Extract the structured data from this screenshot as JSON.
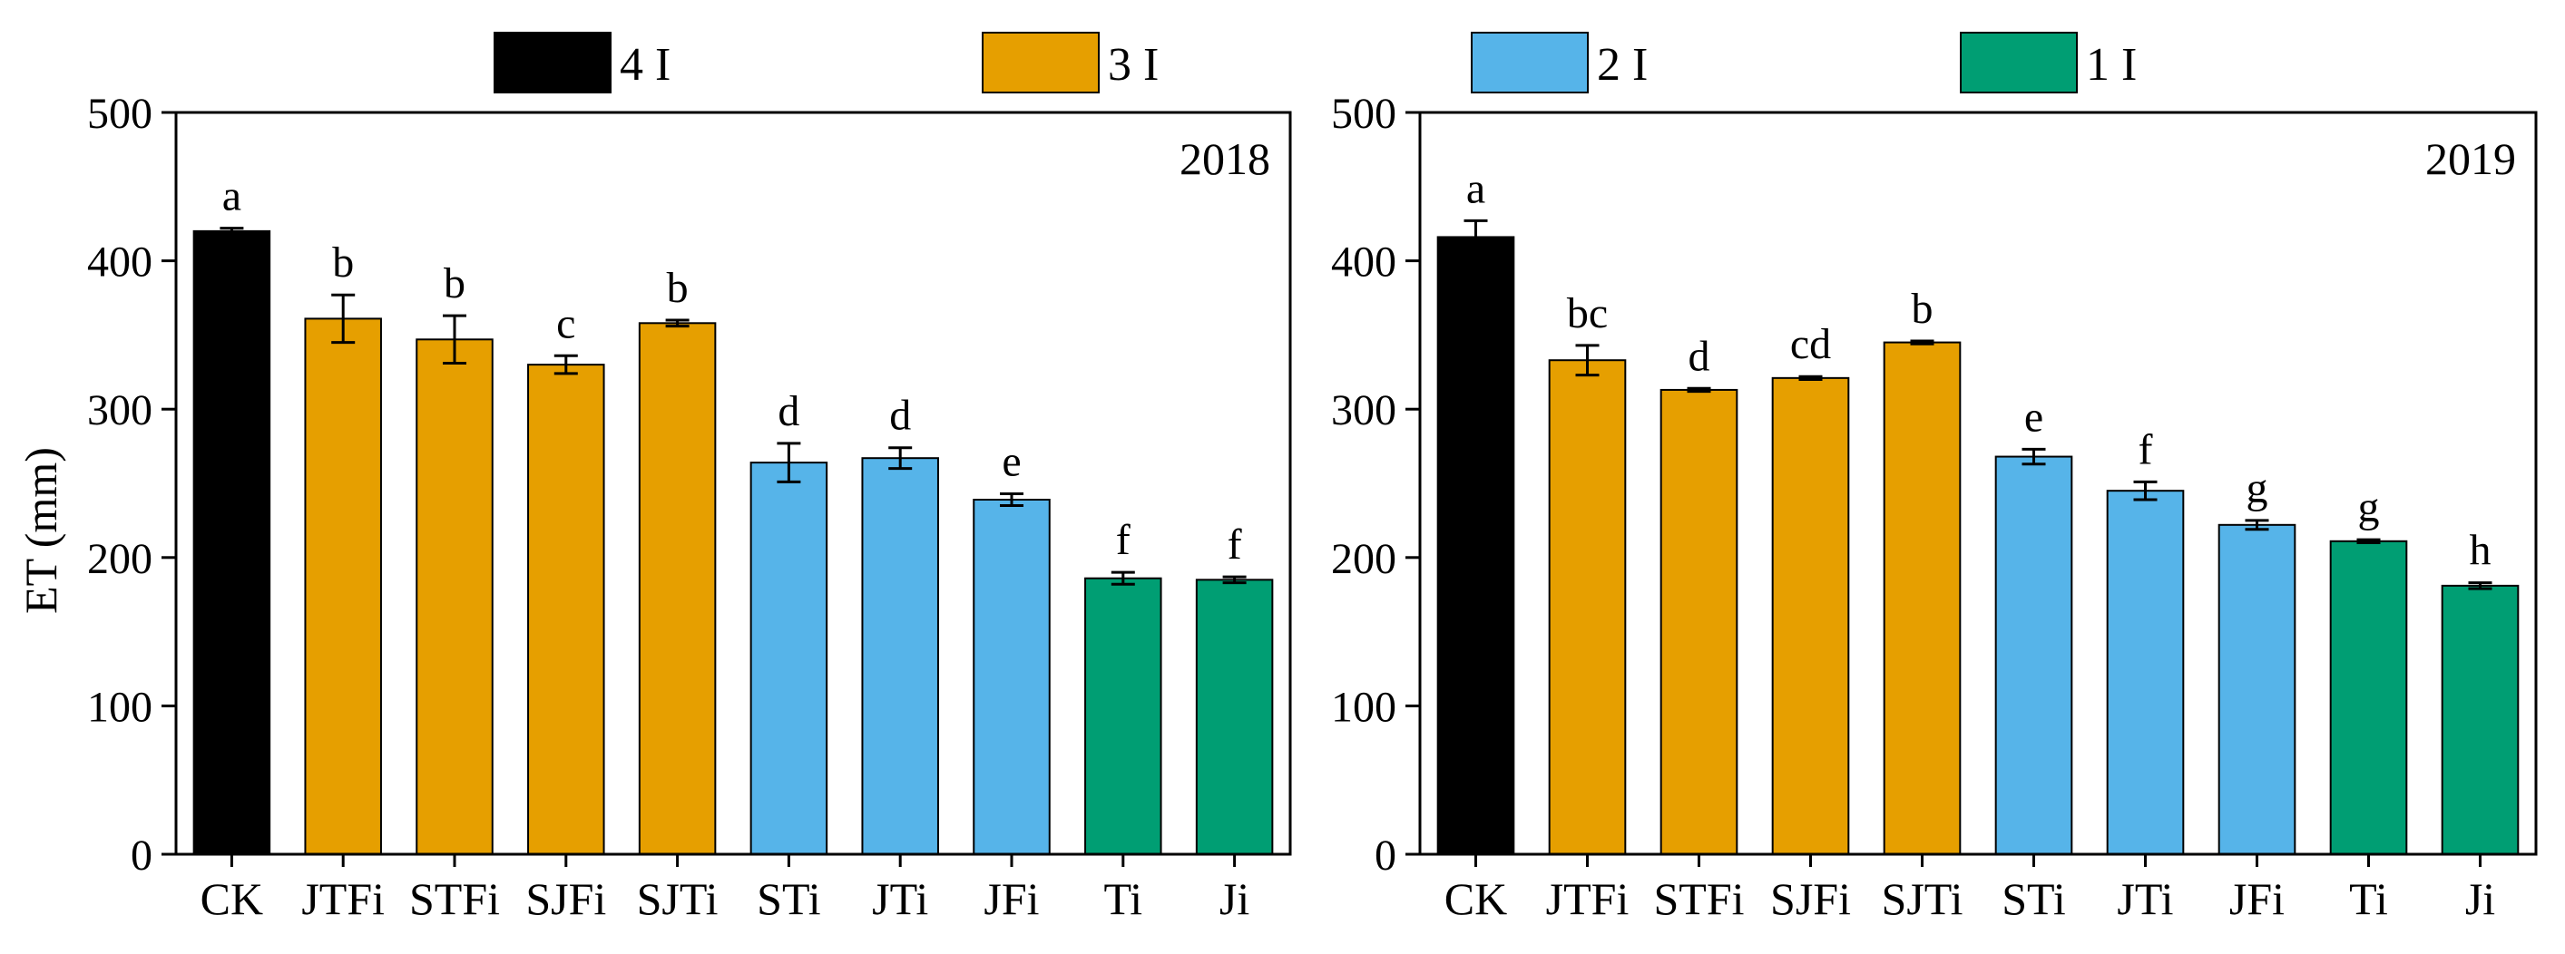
{
  "legend": {
    "placement": "top",
    "items": [
      {
        "label": "4 I",
        "color": "#000000"
      },
      {
        "label": "3 I",
        "color": "#E69F00"
      },
      {
        "label": "2 I",
        "color": "#56B4E9"
      },
      {
        "label": "1 I",
        "color": "#009E73"
      }
    ]
  },
  "chart_data": [
    {
      "type": "bar",
      "title": "2018",
      "xlabel": "",
      "ylabel": "ET (mm)",
      "ylim": [
        0,
        500
      ],
      "yticks": [
        0,
        100,
        200,
        300,
        400,
        500
      ],
      "categories": [
        "CK",
        "JTFi",
        "STFi",
        "SJFi",
        "SJTi",
        "STi",
        "JTi",
        "JFi",
        "Ti",
        "Ji"
      ],
      "values": [
        420,
        361,
        347,
        330,
        358,
        264,
        267,
        239,
        186,
        185
      ],
      "errors": [
        2,
        16,
        16,
        6,
        2,
        13,
        7,
        4,
        4,
        2
      ],
      "significance_letters": [
        "a",
        "b",
        "b",
        "c",
        "b",
        "d",
        "d",
        "e",
        "f",
        "f"
      ],
      "group_by_bar": [
        "4 I",
        "3 I",
        "3 I",
        "3 I",
        "3 I",
        "2 I",
        "2 I",
        "2 I",
        "1 I",
        "1 I"
      ]
    },
    {
      "type": "bar",
      "title": "2019",
      "xlabel": "",
      "ylabel": "",
      "ylim": [
        0,
        500
      ],
      "yticks": [
        0,
        100,
        200,
        300,
        400,
        500
      ],
      "categories": [
        "CK",
        "JTFi",
        "STFi",
        "SJFi",
        "SJTi",
        "STi",
        "JTi",
        "JFi",
        "Ti",
        "Ji"
      ],
      "values": [
        416,
        333,
        313,
        321,
        345,
        268,
        245,
        222,
        211,
        181
      ],
      "errors": [
        11,
        10,
        1,
        1,
        1,
        5,
        6,
        3,
        1,
        2
      ],
      "significance_letters": [
        "a",
        "bc",
        "d",
        "cd",
        "b",
        "e",
        "f",
        "g",
        "g",
        "h"
      ],
      "group_by_bar": [
        "4 I",
        "3 I",
        "3 I",
        "3 I",
        "3 I",
        "2 I",
        "2 I",
        "2 I",
        "1 I",
        "1 I"
      ]
    }
  ]
}
